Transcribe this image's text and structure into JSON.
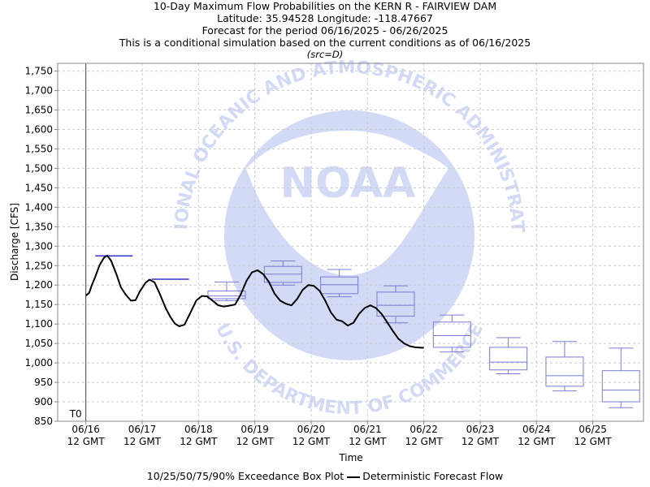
{
  "header": {
    "title_lines": [
      "10-Day Maximum Flow Probabilities on the KERN R - FAIRVIEW DAM",
      "Latitude: 35.94528 Longitude: -118.47667",
      "Forecast for the period 06/16/2025 - 06/26/2025",
      "This is a conditional simulation based on the current conditions as of 06/16/2025"
    ],
    "source": "(src=D)"
  },
  "chart_data": {
    "type": "box",
    "xlabel": "Time",
    "ylabel": "Discharge [CFS]",
    "ylim": [
      850,
      1770
    ],
    "xlim": [
      0,
      10.4
    ],
    "y_ticks": [
      850,
      900,
      950,
      1000,
      1050,
      1100,
      1150,
      1200,
      1250,
      1300,
      1350,
      1400,
      1450,
      1500,
      1550,
      1600,
      1650,
      1700,
      1750
    ],
    "y_tick_labels": [
      "850",
      "900",
      "950",
      "1,000",
      "1,050",
      "1,100",
      "1,150",
      "1,200",
      "1,250",
      "1,300",
      "1,350",
      "1,400",
      "1,450",
      "1,500",
      "1,550",
      "1,600",
      "1,650",
      "1,700",
      "1,750"
    ],
    "x_ticks": [
      {
        "x": 0.5,
        "date": "06/16",
        "time": "12 GMT"
      },
      {
        "x": 1.5,
        "date": "06/17",
        "time": "12 GMT"
      },
      {
        "x": 2.5,
        "date": "06/18",
        "time": "12 GMT"
      },
      {
        "x": 3.5,
        "date": "06/19",
        "time": "12 GMT"
      },
      {
        "x": 4.5,
        "date": "06/20",
        "time": "12 GMT"
      },
      {
        "x": 5.5,
        "date": "06/21",
        "time": "12 GMT"
      },
      {
        "x": 6.5,
        "date": "06/22",
        "time": "12 GMT"
      },
      {
        "x": 7.5,
        "date": "06/23",
        "time": "12 GMT"
      },
      {
        "x": 8.5,
        "date": "06/24",
        "time": "12 GMT"
      },
      {
        "x": 9.5,
        "date": "06/25",
        "time": "12 GMT"
      }
    ],
    "t0": {
      "x": 0.5,
      "label": "T0"
    },
    "grid": true,
    "box_color": "#7b7bd6",
    "t0_color": "#3333cc",
    "boxes": [
      {
        "x": 1.0,
        "p10": 1275,
        "p25": 1275,
        "p50": 1275,
        "p75": 1275,
        "p90": 1275
      },
      {
        "x": 2.0,
        "p10": 1215,
        "p25": 1215,
        "p50": 1215,
        "p75": 1215,
        "p90": 1215
      },
      {
        "x": 3.0,
        "p10": 1160,
        "p25": 1165,
        "p50": 1172,
        "p75": 1185,
        "p90": 1208
      },
      {
        "x": 4.0,
        "p10": 1200,
        "p25": 1207,
        "p50": 1228,
        "p75": 1248,
        "p90": 1262
      },
      {
        "x": 5.0,
        "p10": 1170,
        "p25": 1178,
        "p50": 1201,
        "p75": 1221,
        "p90": 1240
      },
      {
        "x": 6.0,
        "p10": 1103,
        "p25": 1120,
        "p50": 1148,
        "p75": 1182,
        "p90": 1198
      },
      {
        "x": 7.0,
        "p10": 1028,
        "p25": 1040,
        "p50": 1070,
        "p75": 1105,
        "p90": 1123
      },
      {
        "x": 8.0,
        "p10": 972,
        "p25": 982,
        "p50": 1002,
        "p75": 1040,
        "p90": 1065
      },
      {
        "x": 9.0,
        "p10": 928,
        "p25": 940,
        "p50": 967,
        "p75": 1015,
        "p90": 1055
      },
      {
        "x": 10.0,
        "p10": 885,
        "p25": 900,
        "p50": 930,
        "p75": 980,
        "p90": 1038
      }
    ],
    "deterministic": {
      "x": [
        0.5,
        0.56,
        0.6,
        0.67,
        0.74,
        0.82,
        0.88,
        0.95,
        1.05,
        1.12,
        1.2,
        1.3,
        1.38,
        1.46,
        1.56,
        1.63,
        1.72,
        1.82,
        1.92,
        2.0,
        2.08,
        2.16,
        2.25,
        2.36,
        2.46,
        2.56,
        2.65,
        2.75,
        2.85,
        2.95,
        3.05,
        3.15,
        3.25,
        3.35,
        3.45,
        3.55,
        3.65,
        3.75,
        3.85,
        3.95,
        4.05,
        4.15,
        4.25,
        4.35,
        4.45,
        4.55,
        4.65,
        4.75,
        4.85,
        4.95,
        5.05,
        5.15,
        5.25,
        5.35,
        5.45,
        5.55,
        5.65,
        5.75,
        5.85,
        5.95,
        6.05,
        6.15,
        6.25,
        6.35,
        6.45,
        6.5
      ],
      "y": [
        1173,
        1180,
        1198,
        1222,
        1250,
        1270,
        1276,
        1262,
        1225,
        1195,
        1177,
        1160,
        1161,
        1184,
        1206,
        1214,
        1207,
        1175,
        1140,
        1118,
        1101,
        1094,
        1098,
        1130,
        1160,
        1172,
        1171,
        1160,
        1148,
        1145,
        1147,
        1150,
        1176,
        1210,
        1233,
        1238,
        1228,
        1208,
        1178,
        1160,
        1152,
        1148,
        1164,
        1188,
        1200,
        1198,
        1185,
        1160,
        1130,
        1111,
        1107,
        1096,
        1103,
        1126,
        1141,
        1148,
        1141,
        1126,
        1104,
        1082,
        1062,
        1050,
        1043,
        1040,
        1039,
        1039
      ]
    },
    "legend": {
      "box_label": "10/25/50/75/90% Exceedance Box Plot",
      "line_label": "Deterministic Forecast Flow"
    },
    "watermark": {
      "wordmark": "NOAA",
      "ring_top": "NATIONAL OCEANIC AND ATMOSPHERIC ADMINISTRATION",
      "ring_bottom": "U.S. DEPARTMENT OF COMMERCE"
    }
  }
}
